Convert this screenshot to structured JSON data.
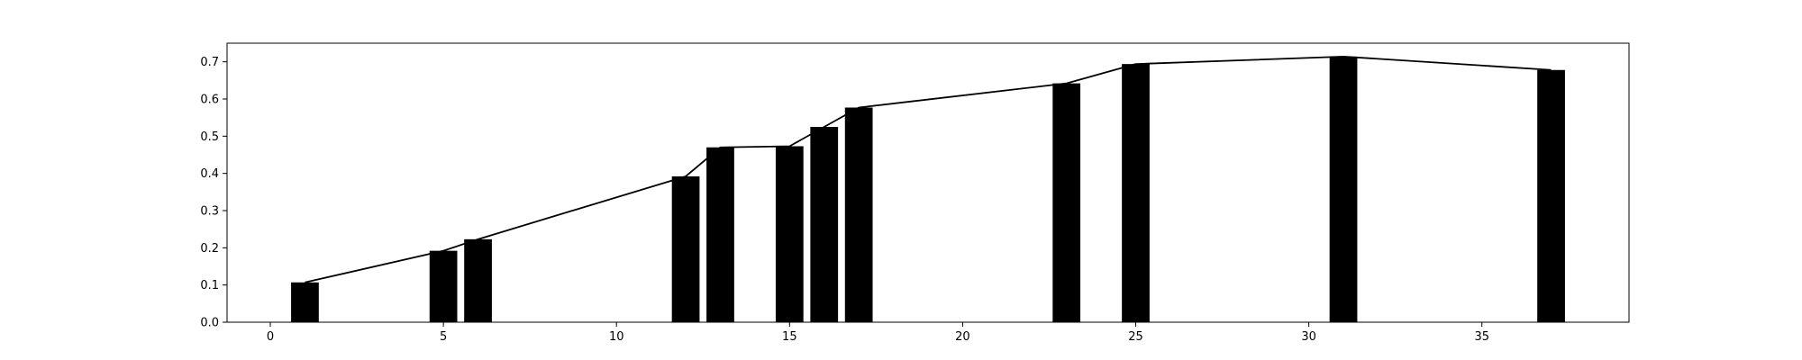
{
  "chart_data": {
    "type": "bar",
    "title": "",
    "xlabel": "",
    "ylabel": "",
    "xlim": [
      -1.25,
      39.25
    ],
    "ylim": [
      0,
      0.75
    ],
    "grid": false,
    "legend": "none",
    "colors": {
      "bar": "#000000",
      "line": "#000000",
      "axes": "#000000",
      "background": "#ffffff"
    },
    "x_ticks": [
      0,
      5,
      10,
      15,
      20,
      25,
      30,
      35
    ],
    "x_tick_labels": [
      "0",
      "5",
      "10",
      "15",
      "20",
      "25",
      "30",
      "35"
    ],
    "y_ticks": [
      0.0,
      0.1,
      0.2,
      0.3,
      0.4,
      0.5,
      0.6,
      0.7
    ],
    "y_tick_labels": [
      "0.0",
      "0.1",
      "0.2",
      "0.3",
      "0.4",
      "0.5",
      "0.6",
      "0.7"
    ],
    "bar_width": 0.8,
    "x": [
      1,
      5,
      6,
      12,
      13,
      15,
      16,
      17,
      23,
      25,
      31,
      37
    ],
    "values": [
      0.107,
      0.192,
      0.223,
      0.392,
      0.47,
      0.473,
      0.525,
      0.577,
      0.642,
      0.694,
      0.714,
      0.678
    ],
    "line": {
      "x": [
        1,
        5,
        6,
        12,
        13,
        15,
        16,
        17,
        23,
        25,
        31,
        37
      ],
      "y": [
        0.107,
        0.192,
        0.223,
        0.392,
        0.47,
        0.473,
        0.525,
        0.577,
        0.642,
        0.694,
        0.714,
        0.678
      ]
    }
  }
}
